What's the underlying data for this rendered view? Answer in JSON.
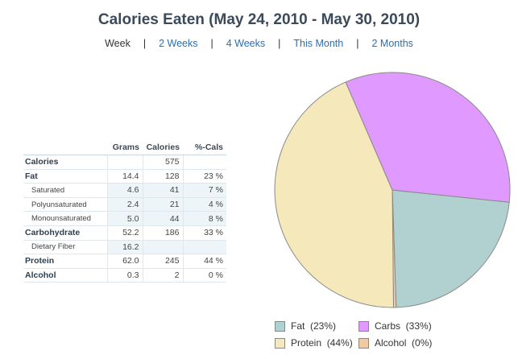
{
  "title": "Calories Eaten (May 24, 2010 - May 30, 2010)",
  "range_options": [
    {
      "label": "Week",
      "active": true
    },
    {
      "label": "2 Weeks",
      "active": false
    },
    {
      "label": "4 Weeks",
      "active": false
    },
    {
      "label": "This Month",
      "active": false
    },
    {
      "label": "2 Months",
      "active": false
    }
  ],
  "separator": "|",
  "table": {
    "headers": [
      "Grams",
      "Calories",
      "%-Cals"
    ],
    "rows": [
      {
        "name": "Calories",
        "type": "major",
        "grams": "",
        "calories": "575",
        "pct": ""
      },
      {
        "name": "Fat",
        "type": "major",
        "grams": "14.4",
        "calories": "128",
        "pct": "23 %"
      },
      {
        "name": "Saturated",
        "type": "minor",
        "grams": "4.6",
        "calories": "41",
        "pct": "7 %"
      },
      {
        "name": "Polyunsaturated",
        "type": "minor",
        "grams": "2.4",
        "calories": "21",
        "pct": "4 %"
      },
      {
        "name": "Monounsaturated",
        "type": "minor",
        "grams": "5.0",
        "calories": "44",
        "pct": "8 %"
      },
      {
        "name": "Carbohydrate",
        "type": "major",
        "grams": "52.2",
        "calories": "186",
        "pct": "33 %"
      },
      {
        "name": "Dietary Fiber",
        "type": "minor",
        "grams": "16.2",
        "calories": "",
        "pct": ""
      },
      {
        "name": "Protein",
        "type": "major",
        "grams": "62.0",
        "calories": "245",
        "pct": "44 %"
      },
      {
        "name": "Alcohol",
        "type": "major",
        "grams": "0.3",
        "calories": "2",
        "pct": "0 %"
      }
    ]
  },
  "chart_data": {
    "type": "pie",
    "slices": [
      {
        "label": "Fat",
        "value": 128,
        "percent": 23,
        "color": "#b0d1cf",
        "legend": "Fat  (23%)"
      },
      {
        "label": "Carbs",
        "value": 186,
        "percent": 33,
        "color": "#df99ff",
        "legend": "Carbs  (33%)"
      },
      {
        "label": "Protein",
        "value": 245,
        "percent": 44,
        "color": "#f5e8bb",
        "legend": "Protein  (44%)"
      },
      {
        "label": "Alcohol",
        "value": 2,
        "percent": 0,
        "color": "#f5c9a0",
        "legend": "Alcohol  (0%)"
      }
    ]
  },
  "legend_order": [
    "Fat",
    "Carbs",
    "Protein",
    "Alcohol"
  ]
}
